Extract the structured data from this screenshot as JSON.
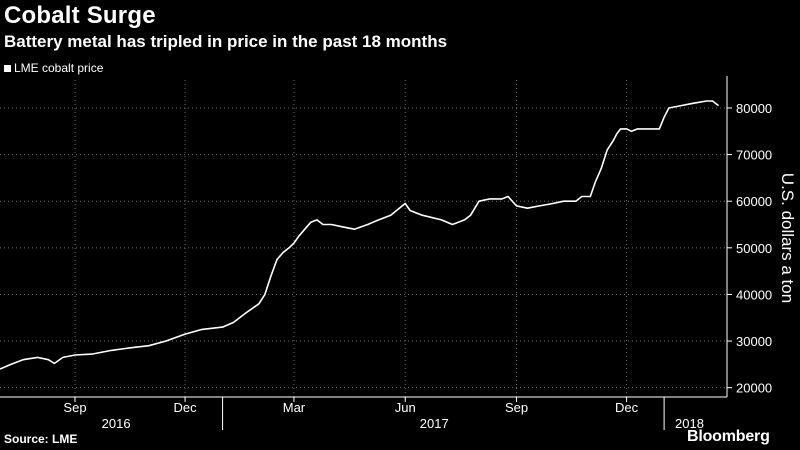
{
  "header": {
    "title": "Cobalt Surge",
    "subtitle": "Battery metal has tripled in price in the past 18 months",
    "legend_label": "LME cobalt price"
  },
  "footer": {
    "source": "Source: LME",
    "brand": "Bloomberg"
  },
  "colors": {
    "background": "#000000",
    "line": "#ffffff",
    "grid": "#6e6e6e",
    "text": "#ffffff"
  },
  "chart_data": {
    "type": "line",
    "title": "Cobalt Surge",
    "subtitle": "Battery metal has tripled in price in the past 18 months",
    "ylabel": "U.S. dollars a ton",
    "y_axis_side": "right",
    "ylim": [
      18000,
      86000
    ],
    "yticks": [
      20000,
      30000,
      40000,
      50000,
      60000,
      70000,
      80000
    ],
    "x_range": [
      "2016-07-01",
      "2018-02-22"
    ],
    "x_ticks": [
      {
        "date": "2016-09-01",
        "label": "Sep"
      },
      {
        "date": "2016-12-01",
        "label": "Dec"
      },
      {
        "date": "2017-03-01",
        "label": "Mar"
      },
      {
        "date": "2017-06-01",
        "label": "Jun"
      },
      {
        "date": "2017-09-01",
        "label": "Sep"
      },
      {
        "date": "2017-12-01",
        "label": "Dec"
      }
    ],
    "year_labels": [
      {
        "date": "2016-10-05",
        "label": "2016"
      },
      {
        "date": "2017-06-25",
        "label": "2017"
      },
      {
        "date": "2018-01-22",
        "label": "2018"
      }
    ],
    "year_boundaries": [
      "2017-01-01",
      "2018-01-01"
    ],
    "grid": true,
    "legend": "top-left",
    "series": [
      {
        "name": "LME cobalt price",
        "x": [
          "2016-07-01",
          "2016-07-10",
          "2016-07-20",
          "2016-08-01",
          "2016-08-10",
          "2016-08-15",
          "2016-08-22",
          "2016-09-01",
          "2016-09-15",
          "2016-10-01",
          "2016-10-15",
          "2016-11-01",
          "2016-11-15",
          "2016-12-01",
          "2016-12-15",
          "2017-01-01",
          "2017-01-10",
          "2017-01-20",
          "2017-01-31",
          "2017-02-05",
          "2017-02-10",
          "2017-02-15",
          "2017-02-20",
          "2017-02-25",
          "2017-03-01",
          "2017-03-05",
          "2017-03-10",
          "2017-03-15",
          "2017-03-20",
          "2017-03-25",
          "2017-04-01",
          "2017-04-10",
          "2017-04-20",
          "2017-05-01",
          "2017-05-10",
          "2017-05-20",
          "2017-06-01",
          "2017-06-05",
          "2017-06-15",
          "2017-07-01",
          "2017-07-10",
          "2017-07-20",
          "2017-07-25",
          "2017-08-01",
          "2017-08-10",
          "2017-08-20",
          "2017-08-25",
          "2017-09-01",
          "2017-09-10",
          "2017-09-20",
          "2017-10-01",
          "2017-10-10",
          "2017-10-20",
          "2017-10-25",
          "2017-11-01",
          "2017-11-05",
          "2017-11-10",
          "2017-11-15",
          "2017-11-20",
          "2017-11-23",
          "2017-11-26",
          "2017-12-01",
          "2017-12-05",
          "2017-12-10",
          "2017-12-20",
          "2017-12-28",
          "2018-01-01",
          "2018-01-05",
          "2018-01-15",
          "2018-01-25",
          "2018-02-05",
          "2018-02-10",
          "2018-02-15"
        ],
        "y": [
          24000,
          25000,
          26000,
          26500,
          26000,
          25200,
          26500,
          27000,
          27200,
          28000,
          28500,
          29000,
          30000,
          31500,
          32500,
          33000,
          34000,
          36000,
          38000,
          40000,
          44000,
          47500,
          49000,
          50000,
          51000,
          52500,
          54000,
          55500,
          56000,
          55000,
          55000,
          54500,
          54000,
          55000,
          56000,
          57000,
          59500,
          58000,
          57000,
          56000,
          55000,
          56000,
          57000,
          60000,
          60500,
          60500,
          61000,
          59000,
          58500,
          59000,
          59500,
          60000,
          60000,
          61000,
          61000,
          64000,
          67000,
          71000,
          73000,
          74500,
          75500,
          75500,
          75000,
          75500,
          75500,
          75500,
          78000,
          80000,
          80500,
          81000,
          81500,
          81500,
          80500
        ]
      }
    ]
  }
}
